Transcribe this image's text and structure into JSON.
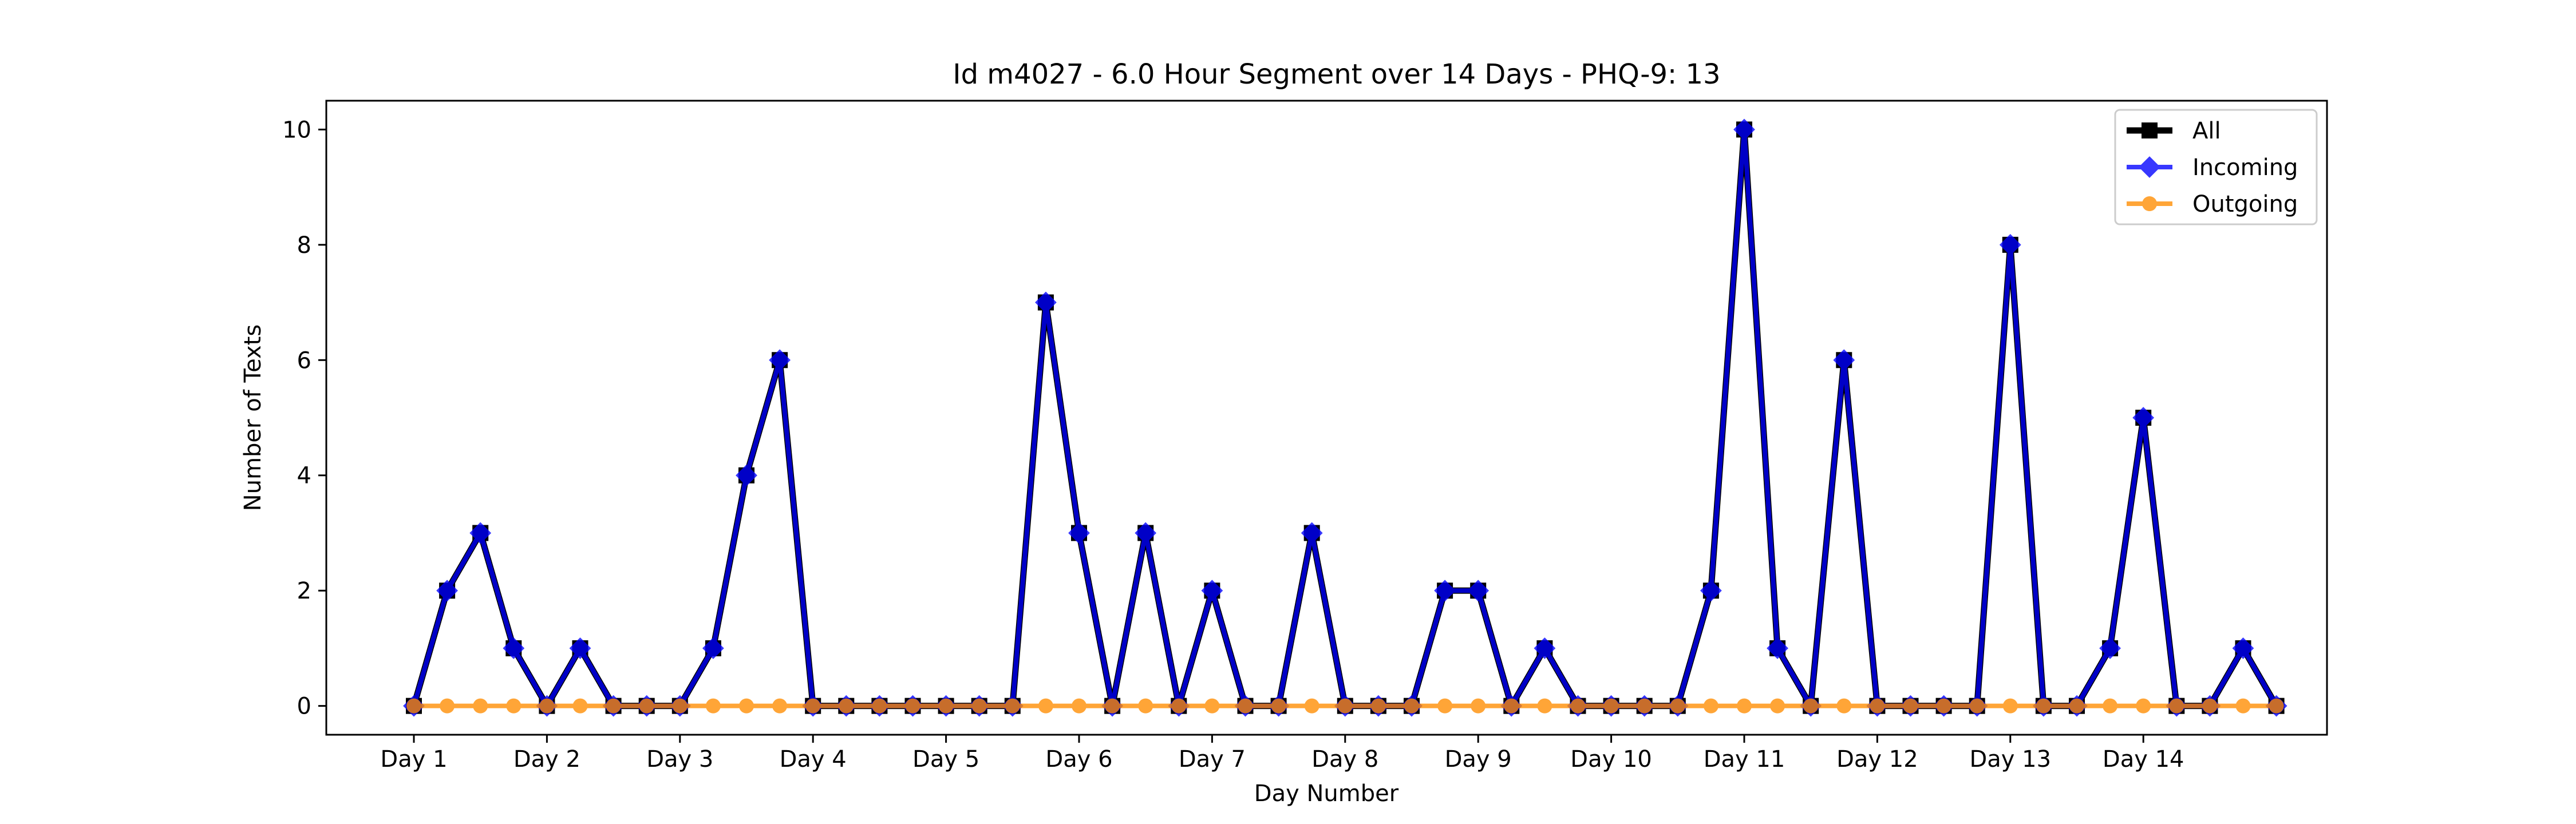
{
  "chart_data": {
    "type": "line",
    "title": "Id m4027 - 6.0 Hour Segment over 14 Days - PHQ-9: 13",
    "xlabel": "Day Number",
    "ylabel": "Number of Texts",
    "ylim": [
      -0.5,
      10.5
    ],
    "yticks": [
      0,
      2,
      4,
      6,
      8,
      10
    ],
    "xtick_labels": [
      "Day 1",
      "Day 2",
      "Day 3",
      "Day 4",
      "Day 5",
      "Day 6",
      "Day 7",
      "Day 8",
      "Day 9",
      "Day 10",
      "Day 11",
      "Day 12",
      "Day 13",
      "Day 14"
    ],
    "segments_per_day": 4,
    "grid": false,
    "legend_position": "top-right",
    "series": [
      {
        "name": "All",
        "color": "#000000",
        "marker": "square",
        "values": [
          0,
          2,
          3,
          1,
          0,
          1,
          0,
          0,
          0,
          1,
          4,
          6,
          0,
          0,
          0,
          0,
          0,
          0,
          0,
          7,
          3,
          0,
          3,
          0,
          2,
          0,
          0,
          3,
          0,
          0,
          0,
          2,
          2,
          0,
          1,
          0,
          0,
          0,
          0,
          2,
          10,
          1,
          0,
          6,
          0,
          0,
          0,
          0,
          8,
          0,
          0,
          1,
          5,
          0,
          0,
          1,
          0
        ]
      },
      {
        "name": "Incoming",
        "color": "#0000ff",
        "marker": "diamond",
        "values": [
          0,
          2,
          3,
          1,
          0,
          1,
          0,
          0,
          0,
          1,
          4,
          6,
          0,
          0,
          0,
          0,
          0,
          0,
          0,
          7,
          3,
          0,
          3,
          0,
          2,
          0,
          0,
          3,
          0,
          0,
          0,
          2,
          2,
          0,
          1,
          0,
          0,
          0,
          0,
          2,
          10,
          1,
          0,
          6,
          0,
          0,
          0,
          0,
          8,
          0,
          0,
          1,
          5,
          0,
          0,
          1,
          0
        ]
      },
      {
        "name": "Outgoing",
        "color": "#ff8c00",
        "marker": "circle",
        "values": [
          0,
          0,
          0,
          0,
          0,
          0,
          0,
          0,
          0,
          0,
          0,
          0,
          0,
          0,
          0,
          0,
          0,
          0,
          0,
          0,
          0,
          0,
          0,
          0,
          0,
          0,
          0,
          0,
          0,
          0,
          0,
          0,
          0,
          0,
          0,
          0,
          0,
          0,
          0,
          0,
          0,
          0,
          0,
          0,
          0,
          0,
          0,
          0,
          0,
          0,
          0,
          0,
          0,
          0,
          0,
          0,
          0
        ]
      }
    ]
  }
}
